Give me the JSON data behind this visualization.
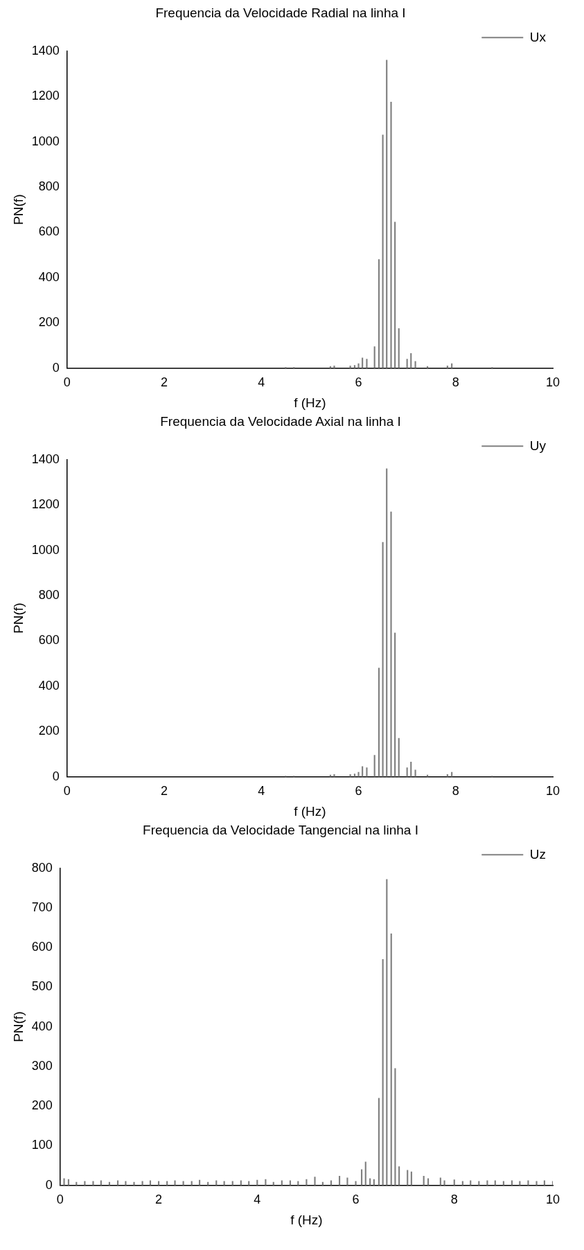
{
  "chart_data": [
    {
      "type": "bar",
      "title": "Frequencia da Velocidade Radial na linha I",
      "xlabel": "f (Hz)",
      "ylabel": "PN(f)",
      "legend": "top right",
      "grid": false,
      "x": [
        4.5,
        4.67,
        5.42,
        5.5,
        5.83,
        5.92,
        6.0,
        6.08,
        6.17,
        6.33,
        6.42,
        6.5,
        6.58,
        6.67,
        6.75,
        6.83,
        7.0,
        7.08,
        7.17,
        7.42,
        7.83,
        7.92,
        8.75
      ],
      "series": [
        {
          "name": "Ux",
          "color": "#808080",
          "values": [
            3,
            3,
            8,
            10,
            10,
            12,
            20,
            45,
            40,
            95,
            480,
            1030,
            1360,
            1175,
            645,
            175,
            40,
            65,
            30,
            8,
            10,
            20,
            3
          ]
        }
      ],
      "xlim": [
        0,
        10
      ],
      "xticks": [
        0,
        2,
        4,
        6,
        8,
        10
      ],
      "ylim": [
        0,
        1400
      ],
      "yticks": [
        0,
        200,
        400,
        600,
        800,
        1000,
        1200,
        1400
      ]
    },
    {
      "type": "bar",
      "title": "Frequencia da Velocidade Axial na linha I",
      "xlabel": "f (Hz)",
      "ylabel": "PN(f)",
      "legend": "top right",
      "grid": false,
      "x": [
        4.5,
        4.67,
        5.42,
        5.5,
        5.83,
        5.92,
        6.0,
        6.08,
        6.17,
        6.33,
        6.42,
        6.5,
        6.58,
        6.67,
        6.75,
        6.83,
        7.0,
        7.08,
        7.17,
        7.42,
        7.83,
        7.92,
        8.75
      ],
      "series": [
        {
          "name": "Uy",
          "color": "#808080",
          "values": [
            3,
            3,
            8,
            10,
            10,
            12,
            20,
            45,
            40,
            95,
            480,
            1035,
            1360,
            1170,
            635,
            170,
            40,
            65,
            30,
            8,
            10,
            20,
            3
          ]
        }
      ],
      "xlim": [
        0,
        10
      ],
      "xticks": [
        0,
        2,
        4,
        6,
        8,
        10
      ],
      "ylim": [
        0,
        1400
      ],
      "yticks": [
        0,
        200,
        400,
        600,
        800,
        1000,
        1200,
        1400
      ]
    },
    {
      "type": "bar",
      "title": "Frequencia da Velocidade Tangencial na linha I",
      "xlabel": "f (Hz)",
      "ylabel": "PN(f)",
      "legend": "top right",
      "grid": false,
      "x": [
        0.0,
        0.08,
        0.17,
        0.33,
        0.5,
        0.67,
        0.83,
        1.0,
        1.17,
        1.33,
        1.5,
        1.67,
        1.83,
        2.0,
        2.17,
        2.33,
        2.5,
        2.67,
        2.83,
        3.0,
        3.17,
        3.33,
        3.5,
        3.67,
        3.83,
        4.0,
        4.17,
        4.33,
        4.5,
        4.67,
        4.83,
        5.0,
        5.17,
        5.33,
        5.5,
        5.67,
        5.83,
        6.0,
        6.12,
        6.2,
        6.29,
        6.37,
        6.47,
        6.55,
        6.63,
        6.72,
        6.8,
        6.88,
        7.05,
        7.13,
        7.38,
        7.47,
        7.72,
        7.8,
        8.0,
        8.17,
        8.33,
        8.5,
        8.67,
        8.83,
        9.0,
        9.17,
        9.33,
        9.5,
        9.67,
        9.83,
        10.0
      ],
      "series": [
        {
          "name": "Uz",
          "color": "#808080",
          "values": [
            12,
            17,
            15,
            8,
            10,
            10,
            12,
            8,
            12,
            10,
            8,
            10,
            12,
            10,
            10,
            12,
            10,
            10,
            13,
            8,
            12,
            10,
            10,
            12,
            10,
            13,
            15,
            8,
            12,
            12,
            10,
            15,
            21,
            8,
            12,
            23,
            19,
            10,
            40,
            59,
            17,
            15,
            220,
            570,
            772,
            635,
            295,
            47,
            38,
            34,
            23,
            17,
            19,
            12,
            14,
            10,
            12,
            10,
            12,
            12,
            10,
            12,
            10,
            12,
            10,
            12,
            10
          ]
        }
      ],
      "xlim": [
        0,
        10
      ],
      "xticks": [
        0,
        2,
        4,
        6,
        8,
        10
      ],
      "ylim": [
        0,
        800
      ],
      "yticks": [
        0,
        100,
        200,
        300,
        400,
        500,
        600,
        700,
        800
      ]
    }
  ]
}
